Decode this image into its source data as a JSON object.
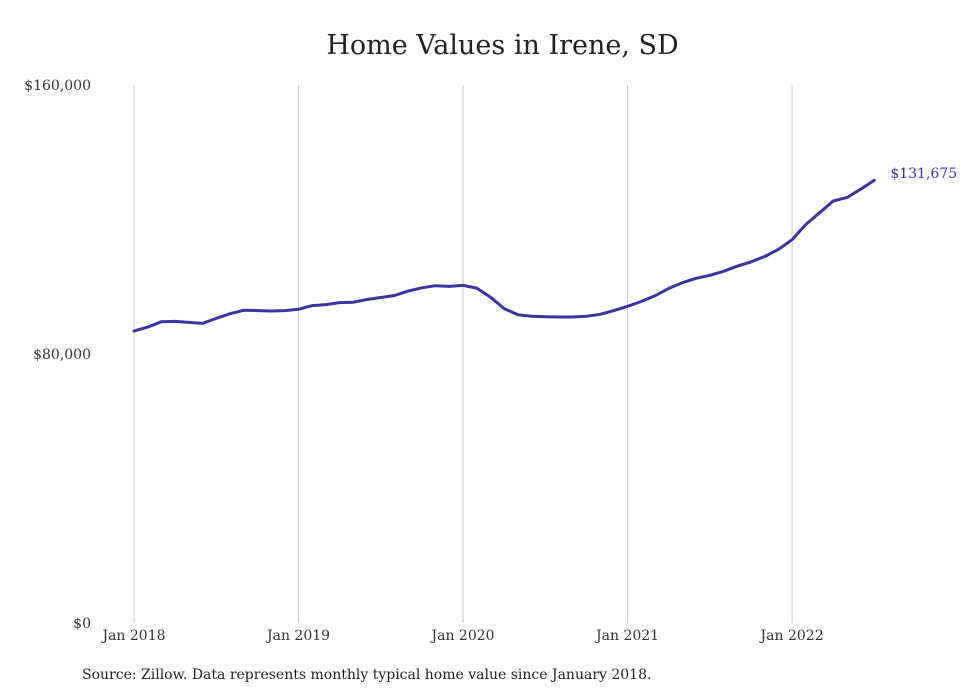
{
  "chart_data": {
    "type": "line",
    "title": "Home Values in Irene, SD",
    "source_note": "Source: Zillow. Data represents monthly typical home value since January 2018.",
    "y_ticks": [
      "$160,000",
      "$80,000",
      "$0"
    ],
    "y_tick_values": [
      160000,
      80000,
      0
    ],
    "x_ticks": [
      "Jan 2018",
      "Jan 2019",
      "Jan 2020",
      "Jan 2021",
      "Jan 2022"
    ],
    "x_tick_dates": [
      "2018-01",
      "2019-01",
      "2020-01",
      "2021-01",
      "2022-01"
    ],
    "ylim": [
      0,
      160000
    ],
    "grid": "vertical lines at x ticks",
    "line_color": "#3b33a0",
    "end_label": "$131,675",
    "series": [
      {
        "x": [
          "2018-01",
          "2018-02",
          "2018-03",
          "2018-04",
          "2018-05",
          "2018-06",
          "2018-07",
          "2018-08",
          "2018-09",
          "2018-10",
          "2018-11",
          "2018-12",
          "2019-01",
          "2019-02",
          "2019-03",
          "2019-04",
          "2019-05",
          "2019-06",
          "2019-07",
          "2019-08",
          "2019-09",
          "2019-10",
          "2019-11",
          "2019-12",
          "2020-01",
          "2020-02",
          "2020-03",
          "2020-04",
          "2020-05",
          "2020-06",
          "2020-07",
          "2020-08",
          "2020-09",
          "2020-10",
          "2020-11",
          "2020-12",
          "2021-01",
          "2021-02",
          "2021-03",
          "2021-04",
          "2021-05",
          "2021-06",
          "2021-07",
          "2021-08",
          "2021-09",
          "2021-10",
          "2021-11",
          "2021-12",
          "2022-01",
          "2022-02",
          "2022-03",
          "2022-04",
          "2022-05",
          "2022-06",
          "2022-07"
        ],
        "values": [
          86800,
          88000,
          89600,
          89700,
          89400,
          89100,
          90600,
          92000,
          93000,
          92900,
          92800,
          92900,
          93300,
          94400,
          94700,
          95300,
          95400,
          96200,
          96800,
          97400,
          98700,
          99700,
          100300,
          100100,
          100400,
          99600,
          96900,
          93500,
          91700,
          91200,
          91100,
          91000,
          91000,
          91200,
          91800,
          92900,
          94200,
          95600,
          97300,
          99500,
          101200,
          102500,
          103400,
          104600,
          106100,
          107400,
          109000,
          111100,
          114000,
          118500,
          122000,
          125500,
          126500,
          129000,
          131675
        ]
      }
    ]
  }
}
